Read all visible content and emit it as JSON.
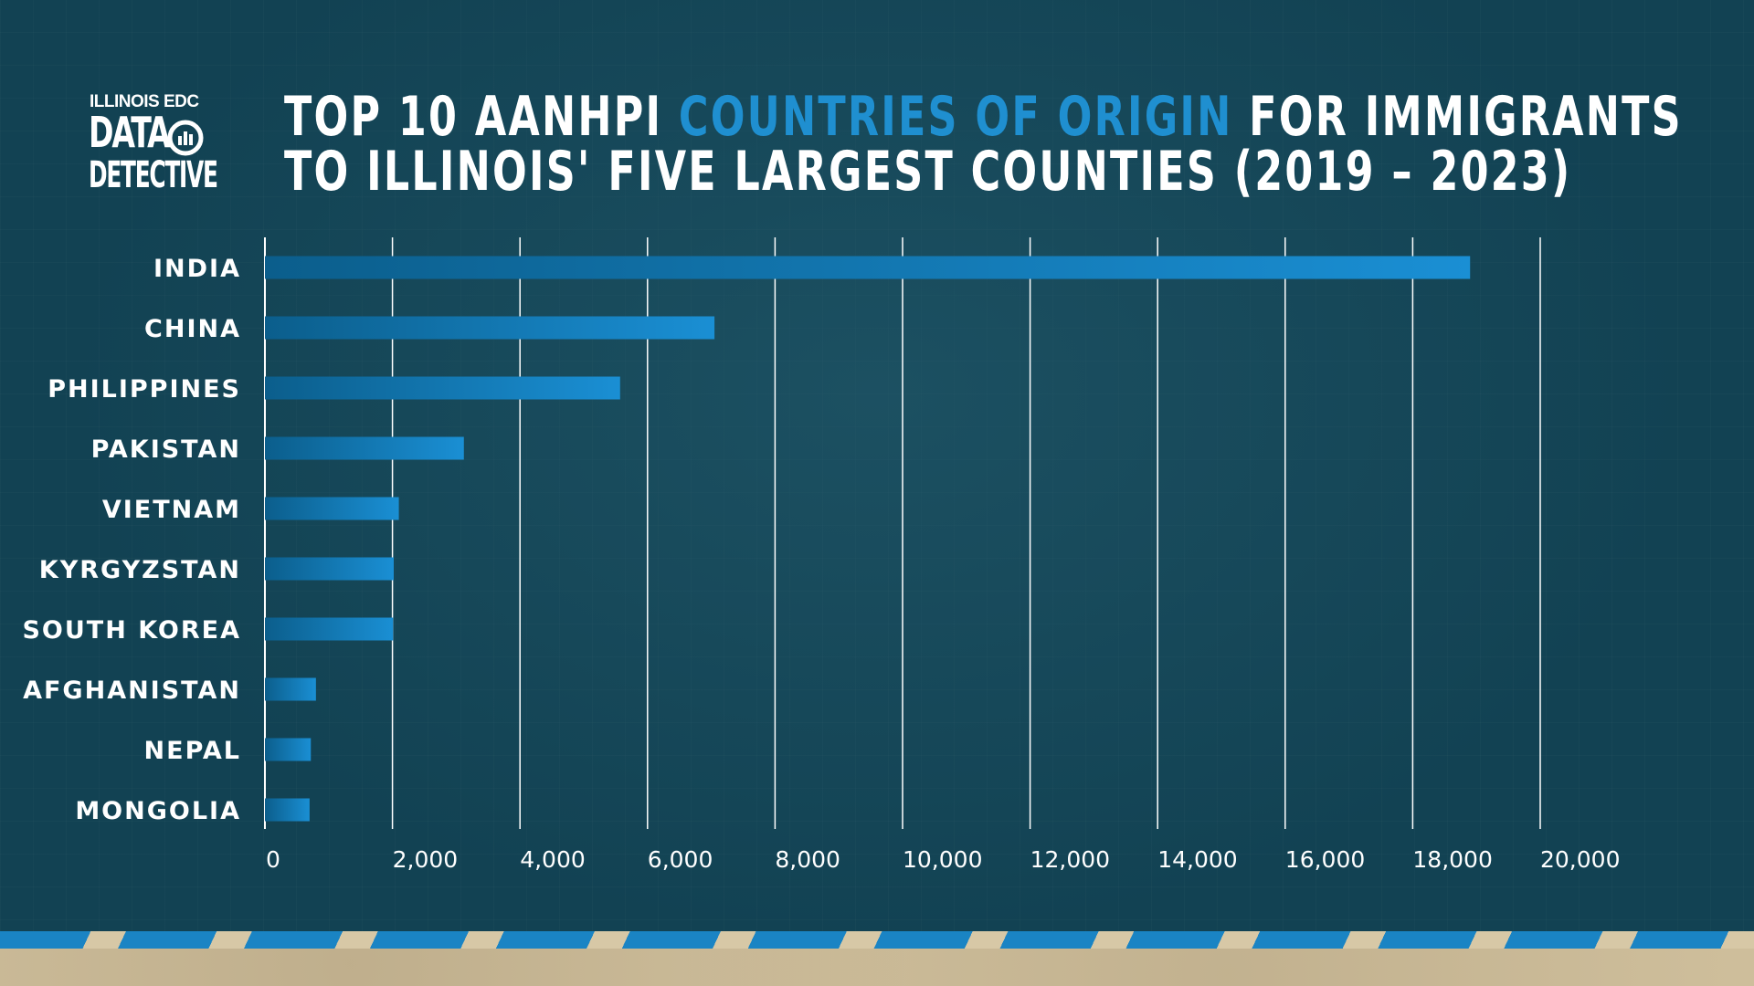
{
  "logo": {
    "line1": "ILLINOIS EDC",
    "line2": "DATA",
    "line3": "DETECTIVE",
    "icon": "magnifier-bar-chart-icon"
  },
  "title": {
    "line1_part1": "TOP 10 AANHPI ",
    "line1_accent": "COUNTRIES OF ORIGIN",
    "line1_part2": " FOR IMMIGRANTS",
    "line2": "TO ILLINOIS' FIVE LARGEST COUNTIES (2019 – 2023)"
  },
  "colors": {
    "background": "#124253",
    "accent": "#1f8fd0",
    "bar_start": "#0b5e8c",
    "bar_end": "#1a8fd4",
    "gridline": "#ffffff",
    "text": "#ffffff"
  },
  "chart_data": {
    "type": "bar",
    "orientation": "horizontal",
    "categories": [
      "INDIA",
      "CHINA",
      "PHILIPPINES",
      "PAKISTAN",
      "VIETNAM",
      "KYRGYZSTAN",
      "SOUTH KOREA",
      "AFGHANISTAN",
      "NEPAL",
      "MONGOLIA"
    ],
    "values": [
      18900,
      7050,
      5570,
      3120,
      2100,
      2020,
      2010,
      800,
      720,
      700
    ],
    "xlim": [
      0,
      20000
    ],
    "xticks": [
      0,
      2000,
      4000,
      6000,
      8000,
      10000,
      12000,
      14000,
      16000,
      18000,
      20000
    ],
    "xtick_labels": [
      "0",
      "2,000",
      "4,000",
      "6,000",
      "8,000",
      "10,000",
      "12,000",
      "14,000",
      "16,000",
      "18,000",
      "20,000"
    ],
    "grid": "vertical",
    "legend": "none"
  }
}
